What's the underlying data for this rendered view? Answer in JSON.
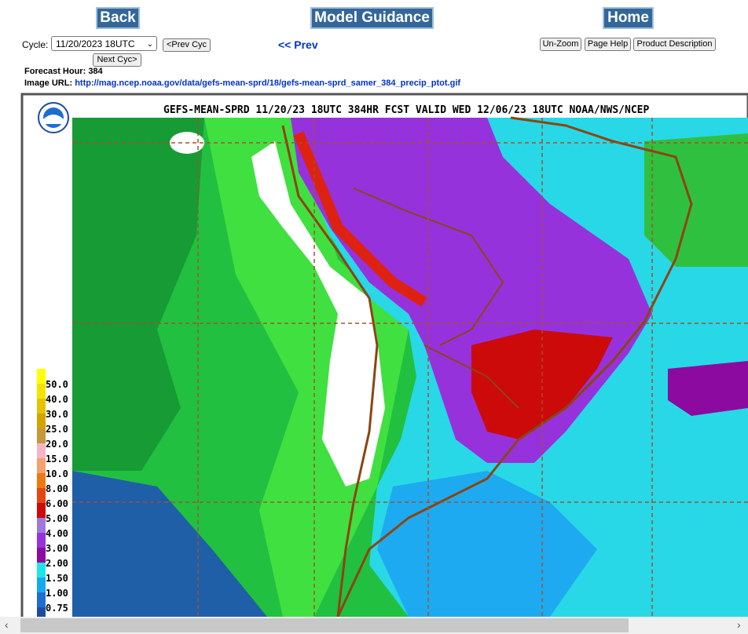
{
  "nav": {
    "back": "Back",
    "title": "Model Guidance",
    "home": "Home"
  },
  "cycle": {
    "label": "Cycle:",
    "selected": "11/20/2023 18UTC",
    "prev_cyc": "<Prev Cyc",
    "next_cyc": "Next Cyc>"
  },
  "prev": "<< Prev",
  "buttons": [
    "Un-Zoom",
    "Page Help",
    "Product Description"
  ],
  "forecast_hour": {
    "label": "Forecast Hour:",
    "value": 384
  },
  "image_url": {
    "label": "Image URL:",
    "url": "http://mag.ncep.noaa.gov/data/gefs-mean-sprd/18/gefs-mean-sprd_samer_384_precip_ptot.gif"
  },
  "map": {
    "title": "GEFS-MEAN-SPRD 11/20/23 18UTC 384HR FCST VALID WED 12/06/23 18UTC NOAA/NWS/NCEP",
    "legend_top_color": "#ffff00",
    "legend": [
      {
        "label": "50.0",
        "color": "#f2e600"
      },
      {
        "label": "40.0",
        "color": "#e6c300"
      },
      {
        "label": "30.0",
        "color": "#d4a300"
      },
      {
        "label": "25.0",
        "color": "#c8963c"
      },
      {
        "label": "20.0",
        "color": "#f5b4c8"
      },
      {
        "label": "15.0",
        "color": "#f5a06e"
      },
      {
        "label": "10.0",
        "color": "#f07814"
      },
      {
        "label": "8.00",
        "color": "#e64614"
      },
      {
        "label": "6.00",
        "color": "#cc0a0a"
      },
      {
        "label": "5.00",
        "color": "#a078dc"
      },
      {
        "label": "4.00",
        "color": "#9632dc"
      },
      {
        "label": "3.00",
        "color": "#8c0aa0"
      },
      {
        "label": "2.00",
        "color": "#1ee6e6"
      },
      {
        "label": "1.50",
        "color": "#14aaf0"
      },
      {
        "label": "1.00",
        "color": "#1e6ed2"
      },
      {
        "label": "0.75",
        "color": "#1e4ba0"
      }
    ]
  }
}
